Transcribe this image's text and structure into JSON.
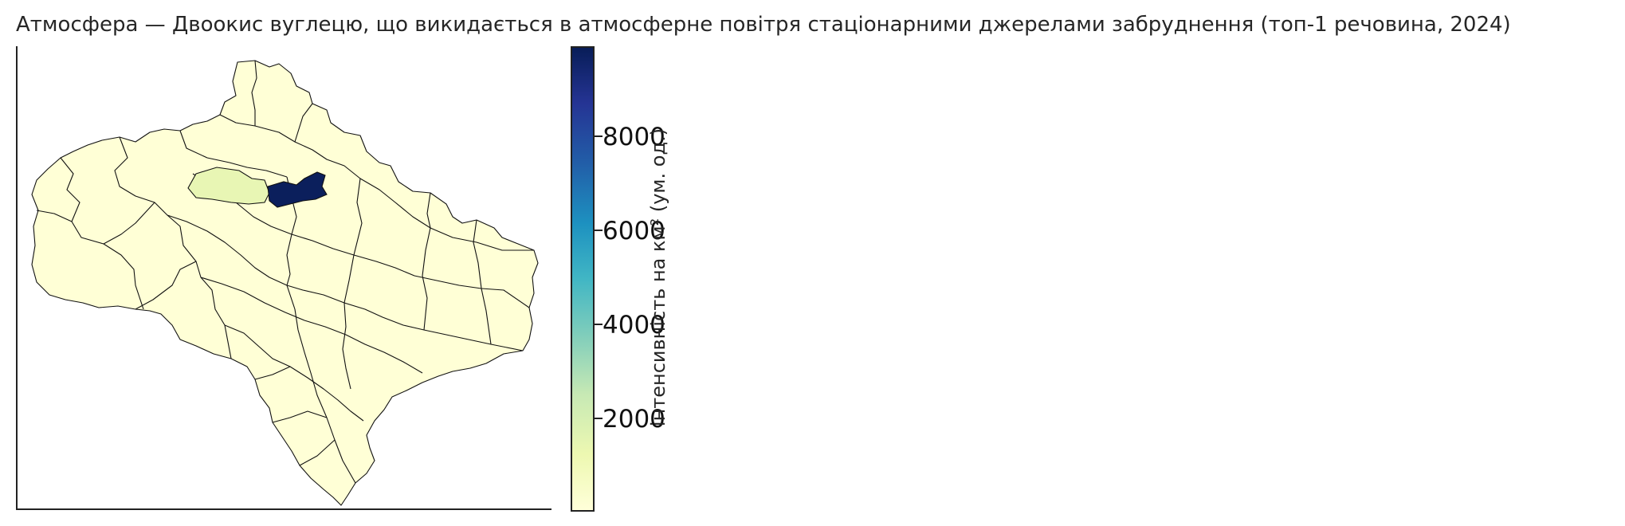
{
  "title": "Атмосфера — Двоокис вуглецю, що викидається в атмосферне повітря стаціонарними джерелами забруднення (топ-1 речовина, 2024)",
  "colorbar": {
    "label": "інтенсивність на км² (ум. од.)",
    "ticks": [
      "2000",
      "4000",
      "6000",
      "8000"
    ],
    "colormap": "YlGnBu",
    "range": [
      0,
      9800
    ]
  },
  "map": {
    "highlight_colors": {
      "max": "#0b1f5c",
      "secondary": "#e8f6b4",
      "base": "#ffffd6",
      "border": "#111111"
    }
  }
}
